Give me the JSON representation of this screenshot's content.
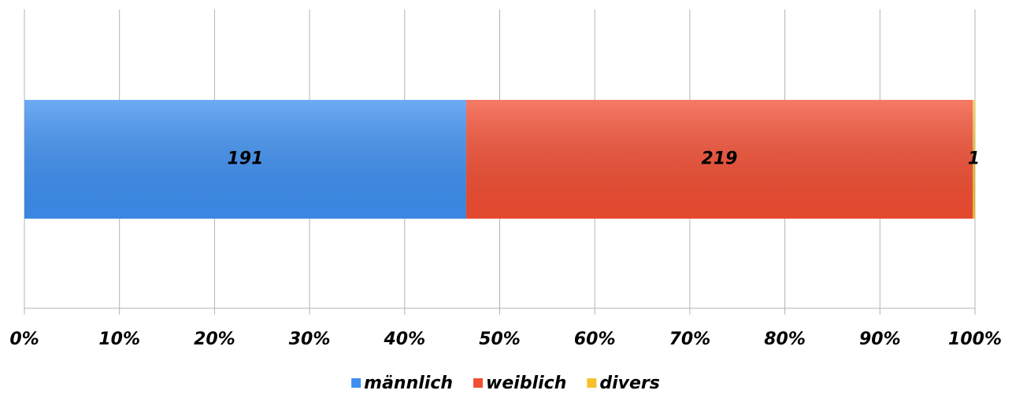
{
  "chart_data": {
    "type": "bar",
    "orientation": "horizontal",
    "stacking": "percent",
    "series": [
      {
        "name": "männlich",
        "color": "#3d8ff0",
        "values": [
          191
        ]
      },
      {
        "name": "weiblich",
        "color": "#f24e33",
        "values": [
          219
        ]
      },
      {
        "name": "divers",
        "color": "#f7c02c",
        "values": [
          1
        ]
      }
    ],
    "xlim": [
      0,
      100
    ],
    "xticks": [
      {
        "value": 0,
        "label": "0%"
      },
      {
        "value": 10,
        "label": "10%"
      },
      {
        "value": 20,
        "label": "20%"
      },
      {
        "value": 30,
        "label": "30%"
      },
      {
        "value": 40,
        "label": "40%"
      },
      {
        "value": 50,
        "label": "50%"
      },
      {
        "value": 60,
        "label": "60%"
      },
      {
        "value": 70,
        "label": "70%"
      },
      {
        "value": 80,
        "label": "80%"
      },
      {
        "value": 90,
        "label": "90%"
      },
      {
        "value": 100,
        "label": "100%"
      }
    ],
    "grid": true,
    "legend": "bottom"
  }
}
